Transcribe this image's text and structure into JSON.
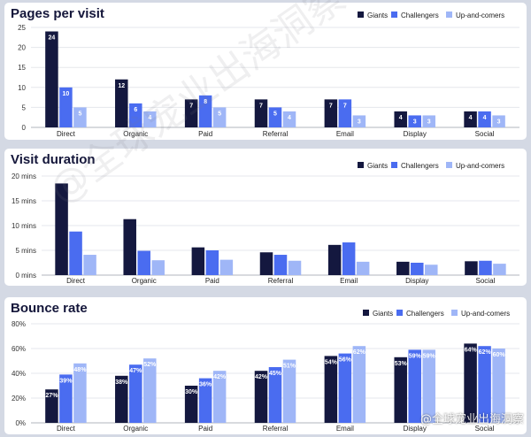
{
  "colors": {
    "Giants": "#14183f",
    "Challengers": "#4a6cf0",
    "Up-and-comers": "#9fb6f7"
  },
  "watermark": "@全球宠业出海洞察",
  "watermark_corner": "@全球宠业出海洞察",
  "chart_data": [
    {
      "type": "bar",
      "title": "Pages per visit",
      "categories": [
        "Direct",
        "Organic",
        "Paid",
        "Referral",
        "Email",
        "Display",
        "Social"
      ],
      "series": [
        {
          "name": "Giants",
          "values": [
            24,
            12,
            7,
            7,
            7,
            4,
            4
          ]
        },
        {
          "name": "Challengers",
          "values": [
            10,
            6,
            8,
            5,
            7,
            3,
            4
          ]
        },
        {
          "name": "Up-and-comers",
          "values": [
            5,
            4,
            5,
            4,
            3,
            3,
            3
          ]
        }
      ],
      "data_labels": true,
      "ylim": [
        0,
        25
      ],
      "yticks": [
        0,
        5,
        10,
        15,
        20,
        25
      ],
      "ytick_labels": [
        "0",
        "5",
        "10",
        "15",
        "20",
        "25"
      ],
      "legend": "top-right",
      "grid": true
    },
    {
      "type": "bar",
      "title": "Visit duration",
      "categories": [
        "Direct",
        "Organic",
        "Paid",
        "Referral",
        "Email",
        "Display",
        "Social"
      ],
      "series": [
        {
          "name": "Giants",
          "values": [
            18.5,
            11.3,
            5.6,
            4.6,
            6.1,
            2.7,
            2.8
          ]
        },
        {
          "name": "Challengers",
          "values": [
            8.8,
            4.9,
            5.0,
            4.1,
            6.6,
            2.5,
            2.9
          ]
        },
        {
          "name": "Up-and-comers",
          "values": [
            4.1,
            3.0,
            3.1,
            2.9,
            2.7,
            2.1,
            2.3
          ]
        }
      ],
      "data_labels": false,
      "ylim": [
        0,
        20
      ],
      "yticks": [
        0,
        5,
        10,
        15,
        20
      ],
      "ytick_labels": [
        "0 mins",
        "5 mins",
        "10 mins",
        "15 mins",
        "20 mins"
      ],
      "legend": "top-right",
      "grid": true
    },
    {
      "type": "bar",
      "title": "Bounce rate",
      "categories": [
        "Direct",
        "Organic",
        "Paid",
        "Referral",
        "Email",
        "Display",
        "Social"
      ],
      "series": [
        {
          "name": "Giants",
          "values": [
            27,
            38,
            30,
            42,
            54,
            53,
            64
          ]
        },
        {
          "name": "Challengers",
          "values": [
            39,
            47,
            36,
            45,
            56,
            59,
            62
          ]
        },
        {
          "name": "Up-and-comers",
          "values": [
            48,
            52,
            42,
            51,
            62,
            59,
            60
          ]
        }
      ],
      "data_labels": true,
      "label_suffix": "%",
      "ylim": [
        0,
        80
      ],
      "yticks": [
        0,
        20,
        40,
        60,
        80
      ],
      "ytick_labels": [
        "0%",
        "20%",
        "40%",
        "60%",
        "80%"
      ],
      "legend": "top-right",
      "grid": true
    }
  ]
}
